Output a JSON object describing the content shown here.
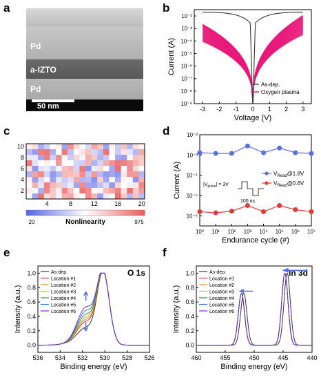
{
  "panels": {
    "a": {
      "letter": "a",
      "labels": [
        "Pd",
        "a-IZTO",
        "Pd"
      ],
      "scale_bar": "50 nm"
    },
    "b": {
      "letter": "b"
    },
    "c": {
      "letter": "c"
    },
    "d": {
      "letter": "d",
      "pulse": {
        "label": "|V",
        "sub": "pulse",
        "value": "| = 3V",
        "width": "100 ns"
      }
    },
    "e": {
      "letter": "e"
    },
    "f": {
      "letter": "f"
    }
  },
  "colors": {
    "as_dep": "#333333",
    "pink": "#e8197a",
    "blue": "#5a6fe0",
    "red": "#e23a3a",
    "loc1": "#d83a3a",
    "loc2": "#e08a2a",
    "loc3": "#c9b52a",
    "loc4": "#2a9a3a",
    "loc5": "#2a7ad8",
    "loc6": "#7a2ad8"
  },
  "chart_data": [
    {
      "panel": "b",
      "type": "line",
      "xlabel": "Voltage (V)",
      "ylabel": "Current (A)",
      "xlim": [
        -3.5,
        3.5
      ],
      "ylim_log10": [
        -9,
        -1.5
      ],
      "y_scale": "log",
      "xticks": [
        "-3",
        "-2",
        "-1",
        "0",
        "1",
        "2",
        "3"
      ],
      "yticks": [
        "10⁻⁹",
        "10⁻⁸",
        "10⁻⁷",
        "10⁻⁶",
        "10⁻⁵",
        "10⁻⁴",
        "10⁻³",
        "10⁻²"
      ],
      "legend_position": "bottom-right",
      "series": [
        {
          "name": "As-dep.",
          "points": [
            [
              -3,
              0.02
            ],
            [
              -2,
              0.012
            ],
            [
              -1,
              0.006
            ],
            [
              -0.3,
              0.0015
            ],
            [
              0,
              1e-09
            ],
            [
              0.3,
              0.0015
            ],
            [
              1,
              0.006
            ],
            [
              2,
              0.012
            ],
            [
              3,
              0.02
            ]
          ]
        },
        {
          "name": "Oxygen plasma",
          "points": [
            [
              -3,
              0.0003
            ],
            [
              -2,
              5e-05
            ],
            [
              -1,
              2e-06
            ],
            [
              -0.5,
              2e-07
            ],
            [
              0,
              1e-09
            ],
            [
              0.5,
              3e-07
            ],
            [
              1,
              4e-06
            ],
            [
              2,
              0.0001
            ],
            [
              3,
              0.001
            ]
          ]
        }
      ]
    },
    {
      "panel": "c",
      "type": "heatmap",
      "xlabel": "",
      "ylabel": "",
      "xticks": [
        "4",
        "8",
        "12",
        "16",
        "20"
      ],
      "yticks": [
        "2",
        "4",
        "6",
        "8",
        "10"
      ],
      "colorbar": {
        "label": "Nonlinearity",
        "min": "20",
        "max": "975"
      },
      "rows": 10,
      "cols": 20
    },
    {
      "panel": "d",
      "type": "line",
      "xlabel": "Endurance cycle (#)",
      "ylabel": "Current (A)",
      "xlim_log10": [
        0,
        7
      ],
      "ylim_log10": [
        -6.5,
        -2
      ],
      "y_scale": "log",
      "x_scale": "log",
      "xticks": [
        "10⁰",
        "10¹",
        "10²",
        "10³",
        "10⁴",
        "10⁵",
        "10⁶",
        "10⁷"
      ],
      "yticks": [
        "10⁻⁶",
        "10⁻⁵",
        "10⁻⁴",
        "10⁻³",
        "10⁻²"
      ],
      "legend_position": "right",
      "series": [
        {
          "name": "V",
          "sub": "Read",
          "suffix": "@1.8V",
          "x": [
            1,
            10,
            100,
            1000,
            10000,
            100000,
            1000000,
            10000000
          ],
          "y": [
            0.0013,
            0.0012,
            0.0012,
            0.0028,
            0.0013,
            0.0022,
            0.0013,
            0.0012
          ]
        },
        {
          "name": "V",
          "sub": "Read",
          "suffix": "@0.6V",
          "x": [
            1,
            10,
            100,
            1000,
            10000,
            100000,
            1000000,
            10000000
          ],
          "y": [
            1.6e-06,
            1.4e-06,
            1.7e-06,
            3.2e-06,
            1.6e-06,
            3.2e-06,
            2e-06,
            1.6e-06
          ]
        }
      ]
    },
    {
      "panel": "e",
      "type": "line",
      "title": "O 1s",
      "xlabel": "Binding energy (eV)",
      "ylabel": "Intensity (a.u.)",
      "xlim": [
        536,
        526
      ],
      "ylim": [
        -0.1,
        1.1
      ],
      "xticks": [
        "536",
        "534",
        "532",
        "530",
        "528",
        "526"
      ],
      "yticks": [
        "0.0",
        "0.2",
        "0.4",
        "0.6",
        "0.8",
        "1.0"
      ],
      "series_names": [
        "As-dep.",
        "Location #1",
        "Location #2",
        "Location #3",
        "Location #4",
        "Location #5",
        "Location #6"
      ],
      "shoulder_heights_at_531_7": [
        0.22,
        0.3,
        0.33,
        0.36,
        0.4,
        0.45,
        0.5
      ]
    },
    {
      "panel": "f",
      "type": "line",
      "title": "In 3d",
      "xlabel": "Binding energy (eV)",
      "ylabel": "Intensity (a.u.)",
      "xlim": [
        460,
        440
      ],
      "ylim": [
        -0.1,
        1.1
      ],
      "xticks": [
        "460",
        "455",
        "450",
        "445",
        "440"
      ],
      "yticks": [
        "0.0",
        "0.2",
        "0.4",
        "0.6",
        "0.8",
        "1.0"
      ],
      "series_names": [
        "As-dep.",
        "Location #1",
        "Location #2",
        "Location #3",
        "Location #4",
        "Location #5",
        "Location #6"
      ],
      "peak1_center_asdep": 451.8,
      "peak1_height": 0.72,
      "peak2_center_asdep": 444.3,
      "peak2_height": 1.0,
      "shift_plasma_eV": 0.4
    }
  ]
}
